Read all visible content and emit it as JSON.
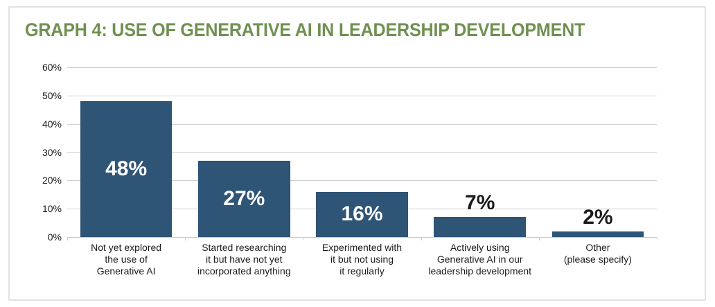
{
  "chart_data": {
    "type": "bar",
    "title": "GRAPH 4: USE OF GENERATIVE AI IN LEADERSHIP DEVELOPMENT",
    "categories": [
      "Not yet explored\nthe use of\nGenerative AI",
      "Started researching\nit but have not yet\nincorporated anything",
      "Experimented with\nit but not using\nit regularly",
      "Actively using\nGenerative AI in our\nleadership development",
      "Other\n(please specify)"
    ],
    "values": [
      48,
      27,
      16,
      7,
      2
    ],
    "value_labels": [
      "48%",
      "27%",
      "16%",
      "7%",
      "2%"
    ],
    "value_label_positions": [
      "inside",
      "inside",
      "inside",
      "above",
      "above"
    ],
    "y_ticks": [
      "60%",
      "50%",
      "40%",
      "30%",
      "20%",
      "10%",
      "0%"
    ],
    "ylim": [
      0,
      60
    ],
    "xlabel": "",
    "ylabel": "",
    "grid": true,
    "legend": "none"
  },
  "colors": {
    "title_text": "#6F9150",
    "bar_fill": "#2E5476",
    "gridline": "#CFCFCF",
    "axis_text": "#1B1B1B",
    "value_label_inside": "#FFFFFF",
    "value_label_above": "#1A1A1A",
    "card_border": "#E2E2E2",
    "card_background": "#FFFFFF"
  }
}
